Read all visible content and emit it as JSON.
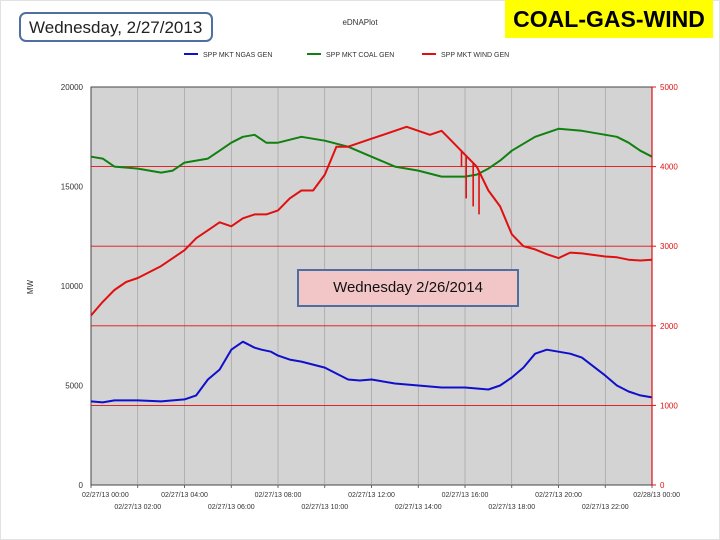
{
  "slide": {
    "date_label": "Wednesday, 2/27/2013",
    "headline": "COAL-GAS-WIND",
    "caption": "Wednesday  2/26/2014",
    "headline_bg": "#ffff00",
    "caption_bg": "#f2c6c6"
  },
  "chart_data": {
    "type": "line",
    "title": "eDNAPlot",
    "ylabel": "MW",
    "ylim_left": [
      0,
      20000
    ],
    "ylim_right": [
      0,
      5000
    ],
    "left_ticks": [
      "0",
      "5000",
      "10000",
      "15000",
      "20000"
    ],
    "right_ticks": [
      "0",
      "1000",
      "2000",
      "3000",
      "4000",
      "5000"
    ],
    "x_ticks_top": [
      "02/27/13 00:00",
      "02/27/13 04:00",
      "02/27/13 08:00",
      "02/27/13 12:00",
      "02/27/13 16:00",
      "02/27/13 20:00",
      "02/28/13 00:00"
    ],
    "x_ticks_bottom": [
      "02/27/13 02:00",
      "02/27/13 06:00",
      "02/27/13 10:00",
      "02/27/13 14:00",
      "02/27/13 18:00",
      "02/27/13 22:00"
    ],
    "grid": true,
    "plot_background": "#d3d3d3",
    "series": [
      {
        "name": "SPP MKT NGAS GEN",
        "axis": "left",
        "color": "#1010cc",
        "x_hours": [
          0,
          0.5,
          1,
          2,
          3,
          4,
          4.5,
          5,
          5.5,
          6,
          6.5,
          7,
          7.3,
          7.7,
          8,
          8.5,
          9,
          10,
          11,
          11.5,
          12,
          13,
          14,
          15,
          16,
          17,
          17.5,
          18,
          18.5,
          19,
          19.5,
          20,
          20.5,
          21,
          22,
          22.5,
          23,
          23.5,
          24
        ],
        "values": [
          4200,
          4150,
          4250,
          4250,
          4200,
          4300,
          4500,
          5300,
          5800,
          6800,
          7200,
          6900,
          6800,
          6700,
          6500,
          6300,
          6200,
          5900,
          5300,
          5250,
          5300,
          5100,
          5000,
          4900,
          4900,
          4800,
          5000,
          5400,
          5900,
          6600,
          6800,
          6700,
          6600,
          6400,
          5500,
          5000,
          4700,
          4500,
          4400
        ]
      },
      {
        "name": "SPP MKT COAL GEN",
        "axis": "left",
        "color": "#108010",
        "x_hours": [
          0,
          0.5,
          1,
          2,
          3,
          3.5,
          4,
          5,
          5.5,
          6,
          6.5,
          7,
          7.5,
          8,
          9,
          10,
          11,
          12,
          13,
          14,
          15,
          16,
          16.5,
          17,
          17.5,
          18,
          19,
          20,
          21,
          22,
          22.5,
          23,
          23.5,
          24
        ],
        "values": [
          16500,
          16400,
          16000,
          15900,
          15700,
          15800,
          16200,
          16400,
          16800,
          17200,
          17500,
          17600,
          17200,
          17200,
          17500,
          17300,
          17000,
          16500,
          16000,
          15800,
          15500,
          15500,
          15600,
          15900,
          16300,
          16800,
          17500,
          17900,
          17800,
          17600,
          17500,
          17200,
          16800,
          16500
        ]
      },
      {
        "name": "SPP MKT WIND GEN",
        "axis": "right",
        "color": "#e01010",
        "x_hours": [
          0,
          0.5,
          1,
          1.5,
          2,
          3,
          4,
          4.5,
          5,
          5.5,
          6,
          6.5,
          7,
          7.5,
          8,
          8.5,
          9,
          9.5,
          10,
          10.5,
          11,
          11.5,
          12,
          12.5,
          13,
          13.5,
          14,
          14.5,
          15,
          15.5,
          16,
          16.5,
          17,
          17.5,
          18,
          18.5,
          19,
          19.5,
          20,
          20.5,
          21,
          22,
          22.5,
          23,
          23.5,
          24
        ],
        "values": [
          2130,
          2300,
          2450,
          2550,
          2600,
          2750,
          2950,
          3100,
          3200,
          3300,
          3250,
          3350,
          3400,
          3400,
          3450,
          3600,
          3700,
          3700,
          3900,
          4250,
          4250,
          4300,
          4350,
          4400,
          4450,
          4500,
          4450,
          4400,
          4450,
          4300,
          4150,
          4000,
          3700,
          3500,
          3150,
          3000,
          2960,
          2900,
          2850,
          2920,
          2910,
          2870,
          2860,
          2830,
          2820,
          2830
        ]
      }
    ],
    "wind_spikes": [
      {
        "x_hours": 15.85,
        "to": 4000
      },
      {
        "x_hours": 16.05,
        "to": 3600
      },
      {
        "x_hours": 16.35,
        "to": 3500
      },
      {
        "x_hours": 16.6,
        "to": 3400
      }
    ]
  }
}
